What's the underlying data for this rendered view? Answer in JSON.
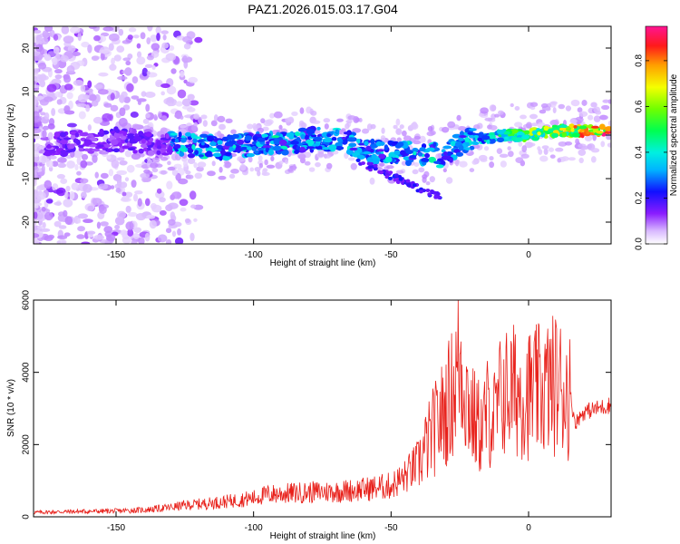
{
  "figure_title": "PAZ1.2026.015.03.17.G04",
  "chart_data": [
    {
      "type": "heatmap",
      "title": "PAZ1.2026.015.03.17.G04",
      "xlabel": "Height of straight line (km)",
      "ylabel": "Frequency (Hz)",
      "xlim": [
        -180,
        30
      ],
      "ylim": [
        -25,
        25
      ],
      "xticks": [
        -150,
        -100,
        -50,
        0
      ],
      "yticks": [
        -20,
        -10,
        0,
        10,
        20
      ],
      "colorbar": {
        "label": "Normalized spectral amplitude",
        "range": [
          0,
          0.95
        ],
        "ticks": [
          0.0,
          0.2,
          0.4,
          0.6,
          0.8
        ]
      },
      "ridge": {
        "description": "dominant frequency ridge (center frequency vs height)",
        "x": [
          -170,
          -150,
          -130,
          -110,
          -100,
          -90,
          -80,
          -70,
          -60,
          -55,
          -50,
          -40,
          -30,
          -25,
          -20,
          -10,
          0,
          10,
          20,
          30
        ],
        "y": [
          -2,
          -1,
          -2,
          -3,
          -2,
          -2,
          -1,
          -1,
          -3,
          -4,
          -4,
          -4,
          -5,
          -2,
          -1,
          0,
          0,
          1,
          1,
          1
        ]
      }
    },
    {
      "type": "line",
      "xlabel": "Height of straight line (km)",
      "ylabel": "SNR (10 * v/v)",
      "xlim": [
        -180,
        30
      ],
      "ylim": [
        0,
        6000
      ],
      "xticks": [
        -150,
        -100,
        -50,
        0
      ],
      "yticks": [
        0,
        2000,
        4000,
        6000
      ],
      "series": [
        {
          "name": "SNR",
          "color": "#e8201a",
          "x": [
            -180,
            -170,
            -160,
            -150,
            -140,
            -130,
            -125,
            -120,
            -110,
            -100,
            -95,
            -90,
            -80,
            -70,
            -60,
            -50,
            -45,
            -40,
            -35,
            -30,
            -27,
            -25,
            -22,
            -20,
            -17,
            -15,
            -12,
            -10,
            -5,
            0,
            5,
            10,
            15,
            17,
            20,
            25,
            30
          ],
          "y": [
            120,
            140,
            150,
            160,
            190,
            260,
            320,
            350,
            420,
            520,
            620,
            640,
            680,
            700,
            760,
            860,
            1100,
            1500,
            2300,
            3000,
            3600,
            4400,
            3200,
            2700,
            2400,
            2900,
            2700,
            3400,
            3500,
            3400,
            3500,
            3700,
            3400,
            2600,
            2900,
            3000,
            3100
          ]
        }
      ]
    }
  ]
}
